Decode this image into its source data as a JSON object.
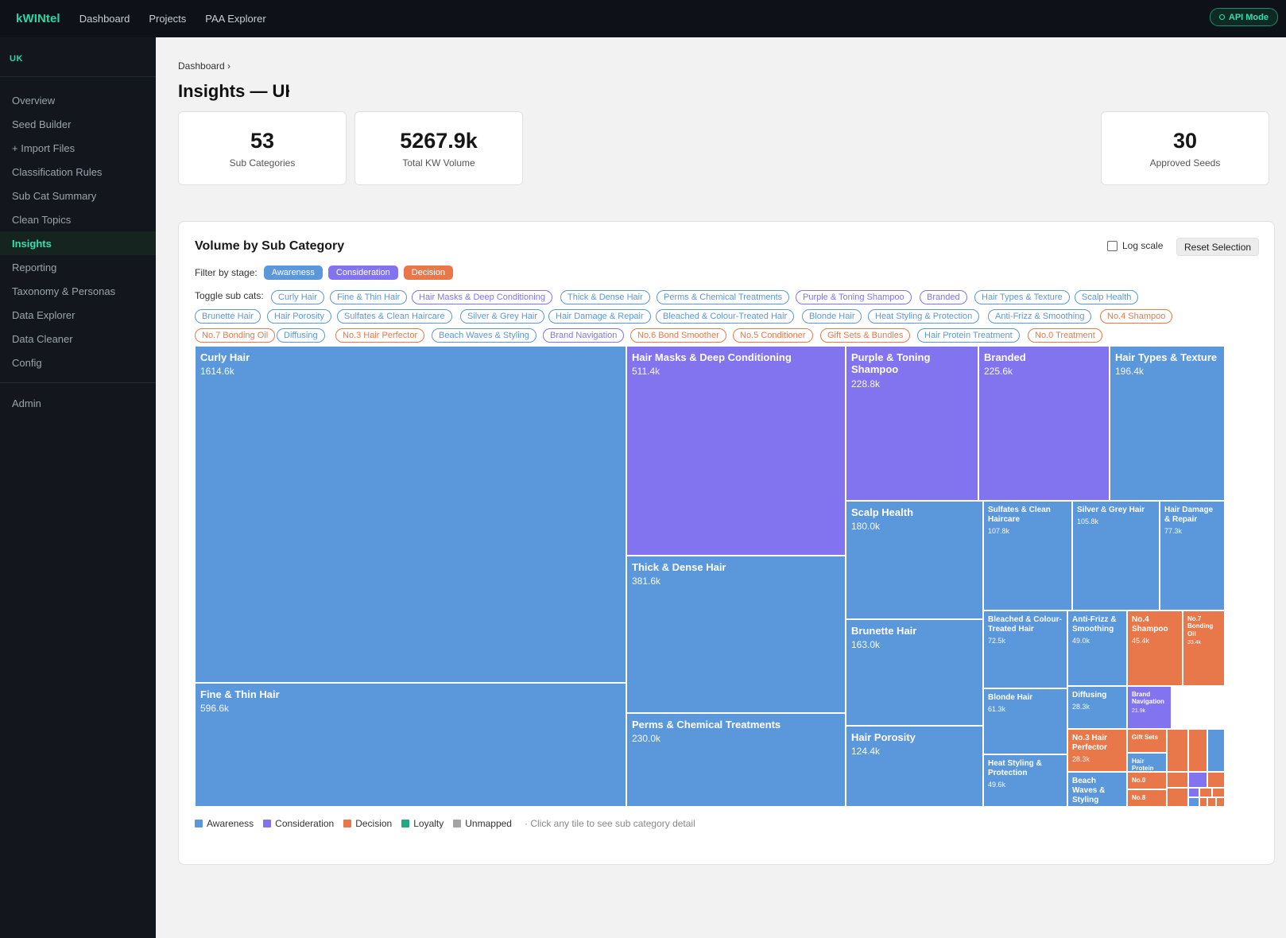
{
  "app": {
    "brand": "kWINtel",
    "nav": [
      "Dashboard",
      "Projects",
      "PAA Explorer"
    ],
    "api_mode": "API Mode"
  },
  "sidebar": {
    "region": "UK",
    "items": [
      "Overview",
      "Seed Builder",
      "+ Import Files",
      "Classification Rules",
      "Sub Cat Summary",
      "Clean Topics",
      "Insights",
      "Reporting",
      "Taxonomy & Personas",
      "Data Explorer",
      "Data Cleaner",
      "Config"
    ],
    "active": "Insights",
    "admin": "Admin"
  },
  "breadcrumb": "Dashboard ›",
  "page_title": "Insights — UK",
  "stats": [
    {
      "value": "53",
      "label": "Sub Categories"
    },
    {
      "value": "5267.9k",
      "label": "Total KW Volume"
    },
    {
      "value": "30",
      "label": "Approved Seeds"
    }
  ],
  "panel": {
    "title": "Volume by Sub Category",
    "log_scale_label": "Log scale",
    "log_scale_checked": false,
    "reset_label": "Reset Selection",
    "filter_label": "Filter by stage:",
    "toggle_label": "Toggle sub cats:",
    "hint": "· Click any tile to see sub category detail"
  },
  "colors": {
    "Awareness": "#5b97db",
    "Consideration": "#8273ee",
    "Decision": "#e8784a",
    "Loyalty": "#25a983",
    "Unmapped": "#a3a3a3"
  },
  "stages": [
    "Awareness",
    "Consideration",
    "Decision"
  ],
  "legend": [
    "Awareness",
    "Consideration",
    "Decision",
    "Loyalty",
    "Unmapped"
  ],
  "subcats": [
    {
      "name": "Curly Hair",
      "stage": "Awareness"
    },
    {
      "name": "Fine & Thin Hair",
      "stage": "Awareness"
    },
    {
      "name": "Hair Masks & Deep Conditioning",
      "stage": "Consideration"
    },
    {
      "name": "Thick & Dense Hair",
      "stage": "Awareness"
    },
    {
      "name": "Perms & Chemical Treatments",
      "stage": "Awareness"
    },
    {
      "name": "Purple & Toning Shampoo",
      "stage": "Consideration"
    },
    {
      "name": "Branded",
      "stage": "Consideration"
    },
    {
      "name": "Hair Types & Texture",
      "stage": "Awareness"
    },
    {
      "name": "Scalp Health",
      "stage": "Awareness"
    },
    {
      "name": "Brunette Hair",
      "stage": "Awareness"
    },
    {
      "name": "Hair Porosity",
      "stage": "Awareness"
    },
    {
      "name": "Sulfates & Clean Haircare",
      "stage": "Awareness"
    },
    {
      "name": "Silver & Grey Hair",
      "stage": "Awareness"
    },
    {
      "name": "Hair Damage & Repair",
      "stage": "Awareness"
    },
    {
      "name": "Bleached & Colour-Treated Hair",
      "stage": "Awareness"
    },
    {
      "name": "Blonde Hair",
      "stage": "Awareness"
    },
    {
      "name": "Heat Styling & Protection",
      "stage": "Awareness"
    },
    {
      "name": "Anti-Frizz & Smoothing",
      "stage": "Awareness"
    },
    {
      "name": "No.4 Shampoo",
      "stage": "Decision"
    },
    {
      "name": "No.7 Bonding Oil",
      "stage": "Decision"
    },
    {
      "name": "Diffusing",
      "stage": "Awareness"
    },
    {
      "name": "No.3 Hair Perfector",
      "stage": "Decision"
    },
    {
      "name": "Beach Waves & Styling",
      "stage": "Awareness"
    },
    {
      "name": "Brand Navigation",
      "stage": "Consideration"
    },
    {
      "name": "No.6 Bond Smoother",
      "stage": "Decision"
    },
    {
      "name": "No.5 Conditioner",
      "stage": "Decision"
    },
    {
      "name": "Gift Sets & Bundles",
      "stage": "Decision"
    },
    {
      "name": "Hair Protein Treatment",
      "stage": "Awareness"
    },
    {
      "name": "No.0 Treatment",
      "stage": "Decision"
    }
  ],
  "tiles": [
    {
      "name": "Curly Hair",
      "value": "1614.6k",
      "stage": "Awareness"
    },
    {
      "name": "Fine & Thin Hair",
      "value": "596.6k",
      "stage": "Awareness"
    },
    {
      "name": "Hair Masks & Deep Conditioning",
      "value": "511.4k",
      "stage": "Consideration"
    },
    {
      "name": "Thick & Dense Hair",
      "value": "381.6k",
      "stage": "Awareness"
    },
    {
      "name": "Perms & Chemical Treatments",
      "value": "230.0k",
      "stage": "Awareness"
    },
    {
      "name": "Purple & Toning Shampoo",
      "value": "228.8k",
      "stage": "Consideration"
    },
    {
      "name": "Branded",
      "value": "225.6k",
      "stage": "Consideration"
    },
    {
      "name": "Hair Types & Texture",
      "value": "196.4k",
      "stage": "Awareness"
    },
    {
      "name": "Scalp Health",
      "value": "180.0k",
      "stage": "Awareness"
    },
    {
      "name": "Brunette Hair",
      "value": "163.0k",
      "stage": "Awareness"
    },
    {
      "name": "Hair Porosity",
      "value": "124.4k",
      "stage": "Awareness"
    },
    {
      "name": "Sulfates & Clean Haircare",
      "value": "107.8k",
      "stage": "Awareness"
    },
    {
      "name": "Silver & Grey Hair",
      "value": "105.8k",
      "stage": "Awareness"
    },
    {
      "name": "Hair Damage & Repair",
      "value": "77.3k",
      "stage": "Awareness"
    },
    {
      "name": "Bleached & Colour-Treated Hair",
      "value": "72.5k",
      "stage": "Awareness"
    },
    {
      "name": "Blonde Hair",
      "value": "61.3k",
      "stage": "Awareness"
    },
    {
      "name": "Heat Styling & Protection",
      "value": "49.6k",
      "stage": "Awareness"
    },
    {
      "name": "Anti-Frizz & Smoothing",
      "value": "49.0k",
      "stage": "Awareness"
    },
    {
      "name": "No.4 Shampoo",
      "value": "45.4k",
      "stage": "Decision"
    },
    {
      "name": "No.7 Bonding Oil",
      "value": "33.4k",
      "stage": "Decision"
    },
    {
      "name": "Diffusing",
      "value": "28.3k",
      "stage": "Awareness"
    },
    {
      "name": "No.3 Hair Perfector",
      "value": "28.3k",
      "stage": "Decision"
    },
    {
      "name": "Brand Navigation",
      "value": "21.9k",
      "stage": "Consideration"
    },
    {
      "name": "Beach Waves & Styling",
      "value": "",
      "stage": "Awareness"
    },
    {
      "name": "Gift Sets",
      "value": "",
      "stage": "Decision"
    },
    {
      "name": "Hair Protein",
      "value": "",
      "stage": "Awareness"
    },
    {
      "name": "No.0",
      "value": "",
      "stage": "Decision"
    },
    {
      "name": "No.8",
      "value": "",
      "stage": "Decision"
    }
  ]
}
